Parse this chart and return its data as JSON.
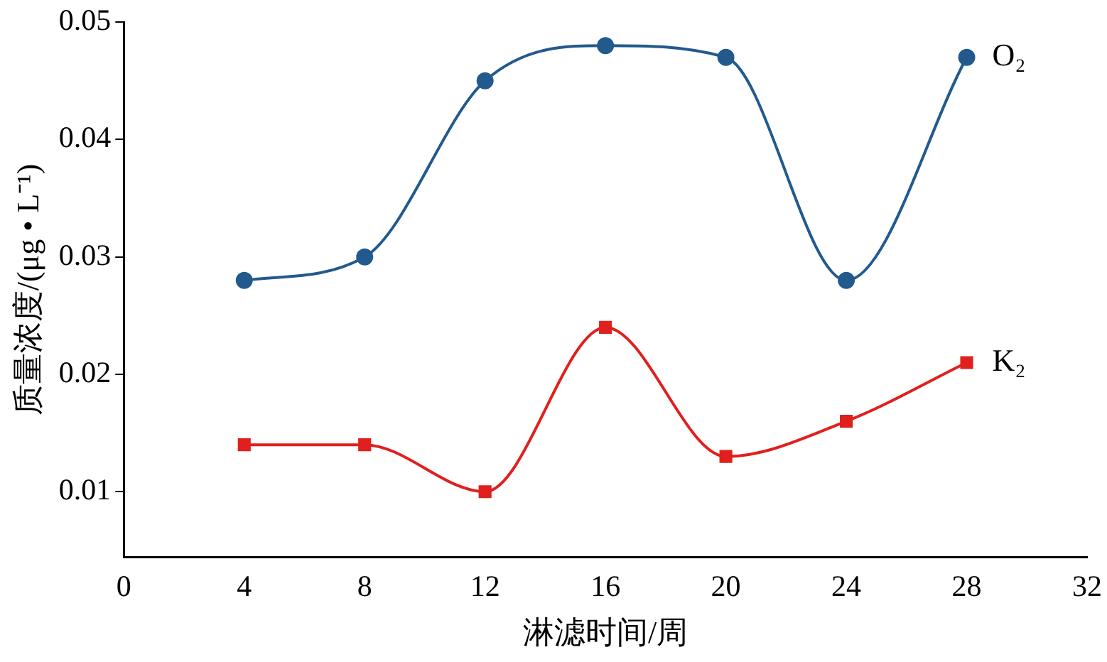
{
  "chart_data": {
    "type": "line",
    "xlabel": "淋滤时间/周",
    "ylabel": "质量浓度/(μg • L⁻¹)",
    "x": [
      4,
      8,
      12,
      16,
      20,
      24,
      28
    ],
    "series": [
      {
        "name": "O₂",
        "color": "#225a8e",
        "marker": "circle",
        "values": [
          0.028,
          0.03,
          0.045,
          0.048,
          0.047,
          0.028,
          0.047
        ]
      },
      {
        "name": "K₂",
        "color": "#e0201e",
        "marker": "square",
        "values": [
          0.014,
          0.014,
          0.01,
          0.024,
          0.013,
          0.016,
          0.021
        ]
      }
    ],
    "xlim": [
      0,
      32
    ],
    "xticks": [
      0,
      4,
      8,
      12,
      16,
      20,
      24,
      28,
      32
    ],
    "ylim": [
      0.0044,
      0.05
    ],
    "yticks": [
      0.01,
      0.02,
      0.03,
      0.04,
      0.05
    ],
    "grid": false,
    "legend": false
  }
}
